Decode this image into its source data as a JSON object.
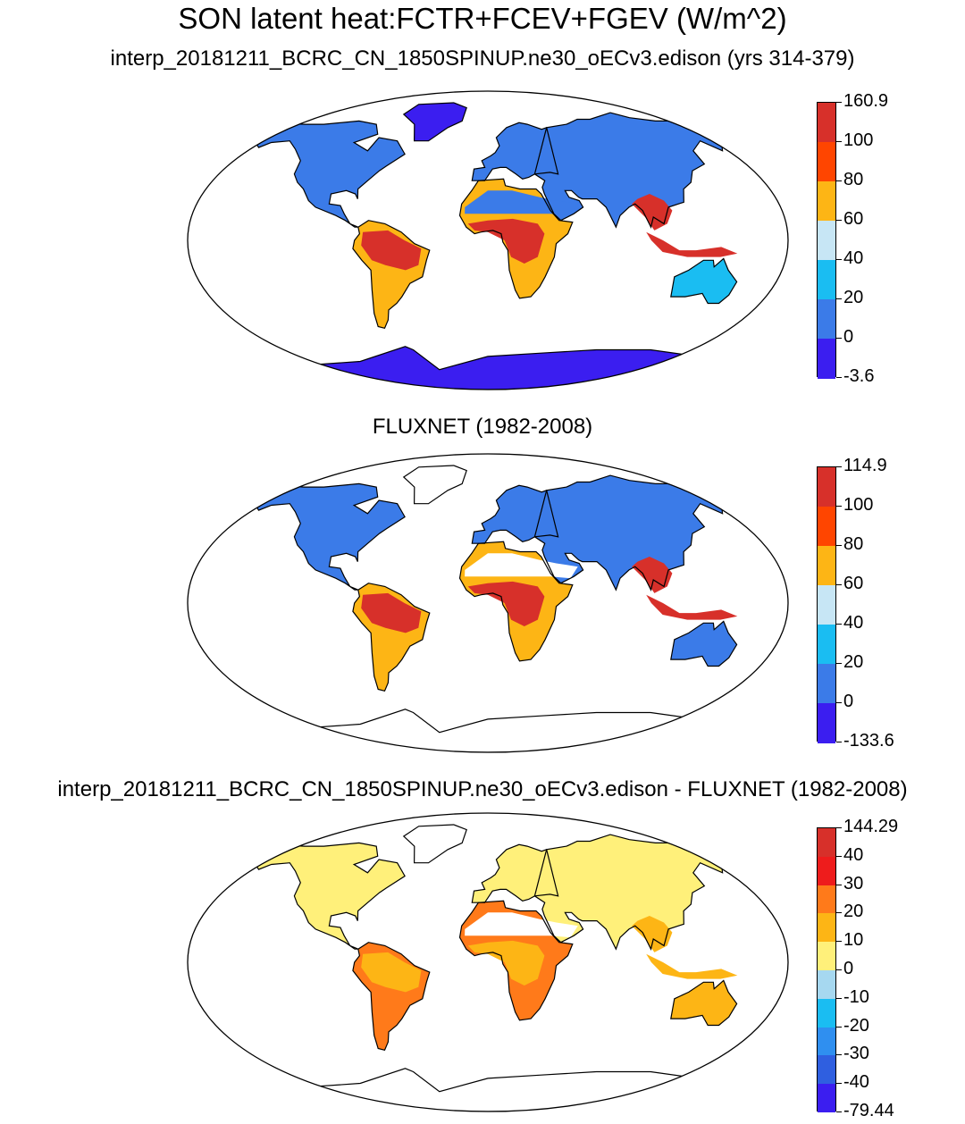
{
  "titles": {
    "main": "SON latent heat:FCTR+FCEV+FGEV (W/m^2)",
    "panel1": "interp_20181211_BCRC_CN_1850SPINUP.ne30_oECv3.edison (yrs 314-379)",
    "panel2": "FLUXNET (1982-2008)",
    "panel3": "interp_20181211_BCRC_CN_1850SPINUP.ne30_oECv3.edison - FLUXNET (1982-2008)"
  },
  "colorbars": {
    "panel1": {
      "labels": [
        "160.9",
        "100",
        "80",
        "60",
        "40",
        "20",
        "0",
        "-3.6"
      ],
      "colors": [
        "#d7302a",
        "#ff4500",
        "#fdb515",
        "#c7e6f5",
        "#1abdf2",
        "#3b7be8",
        "#3b1ef0"
      ]
    },
    "panel2": {
      "labels": [
        "114.9",
        "100",
        "80",
        "60",
        "40",
        "20",
        "0",
        "-133.6"
      ],
      "colors": [
        "#d7302a",
        "#ff4500",
        "#fdb515",
        "#c7e6f5",
        "#1abdf2",
        "#3b7be8",
        "#3b1ef0"
      ]
    },
    "panel3": {
      "labels": [
        "144.29",
        "40",
        "30",
        "20",
        "10",
        "0",
        "-10",
        "-20",
        "-30",
        "-40",
        "-79.44"
      ],
      "colors": [
        "#d7302a",
        "#ee1c1c",
        "#ff7a1a",
        "#fdb515",
        "#fff07a",
        "#a6d8f0",
        "#1abdf2",
        "#2f8ff0",
        "#2f5fe0",
        "#3b1ef0"
      ]
    }
  },
  "map_fills": {
    "panel1": {
      "north": "#3b7be8",
      "tropics": "#d7302a",
      "subtropics": "#fdb515",
      "dry": "#3b7be8",
      "antarctica": "#3b1ef0",
      "greenland": "#3b1ef0",
      "australia": "#1abdf2"
    },
    "panel2": {
      "north": "#3b7be8",
      "tropics": "#d7302a",
      "subtropics": "#fdb515",
      "dry": "#ffffff",
      "antarctica": "#ffffff",
      "greenland": "#ffffff",
      "australia": "#3b7be8"
    },
    "panel3": {
      "north": "#fff07a",
      "tropics": "#fdb515",
      "subtropics": "#ff7a1a",
      "dry": "#ffffff",
      "antarctica": "#ffffff",
      "greenland": "#ffffff",
      "australia": "#fdb515"
    }
  }
}
